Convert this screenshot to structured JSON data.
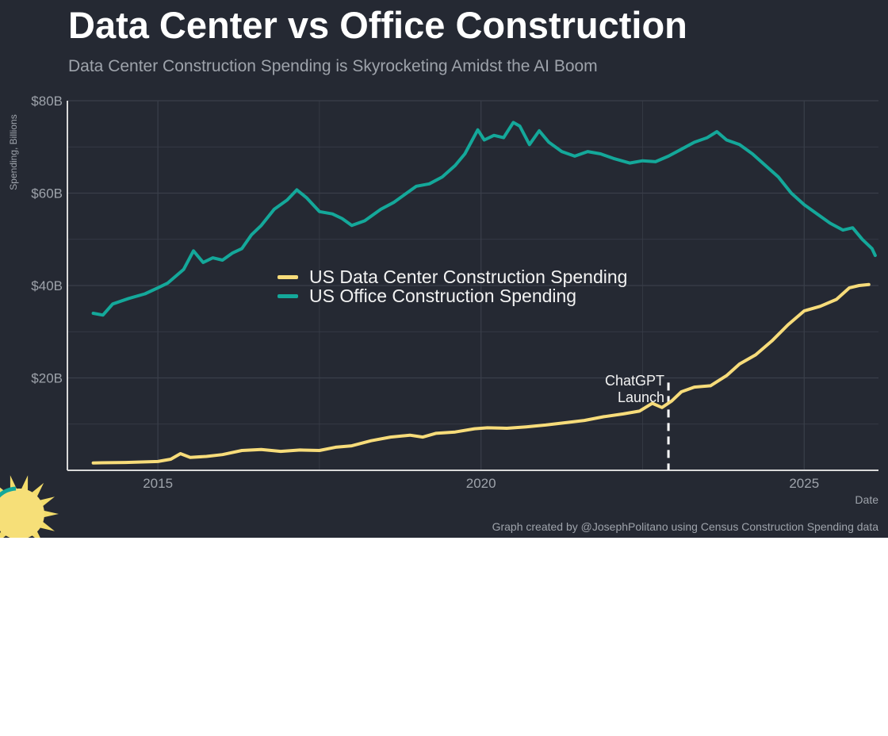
{
  "title": "Data Center vs Office Construction",
  "subtitle": "Data Center Construction Spending is Skyrocketing Amidst the AI Boom",
  "caption": "Graph created by @JosephPolitano using Census Construction Spending data",
  "colors": {
    "background": "#252933",
    "grid": "#3a3f4a",
    "axis": "#d9d9d9",
    "datacenter": "#f7dc7a",
    "office": "#14a89a",
    "text_muted": "#9ea3ab"
  },
  "chart_data": {
    "type": "line",
    "title": "Data Center vs Office Construction",
    "subtitle": "Data Center Construction Spending is Skyrocketing Amidst the AI Boom",
    "xlabel": "Date",
    "ylabel": "Spending, Billions",
    "xlim": [
      2013.6,
      2026.15
    ],
    "ylim": [
      0,
      80
    ],
    "x_ticks": [
      {
        "value": 2015,
        "label": "2015"
      },
      {
        "value": 2020,
        "label": "2020"
      },
      {
        "value": 2025,
        "label": "2025"
      }
    ],
    "y_ticks": [
      {
        "value": 80,
        "label": "$80B"
      },
      {
        "value": 60,
        "label": "$60B"
      },
      {
        "value": 40,
        "label": "$40B"
      },
      {
        "value": 20,
        "label": "$20B"
      }
    ],
    "grid": true,
    "legend_position": "center",
    "series": [
      {
        "name": "US Data Center Construction Spending",
        "color": "#f7dc7a",
        "points": [
          [
            2014.0,
            1.6
          ],
          [
            2014.5,
            1.7
          ],
          [
            2015.0,
            1.9
          ],
          [
            2015.2,
            2.4
          ],
          [
            2015.35,
            3.6
          ],
          [
            2015.5,
            2.8
          ],
          [
            2015.75,
            3.0
          ],
          [
            2016.0,
            3.4
          ],
          [
            2016.3,
            4.3
          ],
          [
            2016.6,
            4.5
          ],
          [
            2016.9,
            4.1
          ],
          [
            2017.2,
            4.4
          ],
          [
            2017.5,
            4.3
          ],
          [
            2017.75,
            5.0
          ],
          [
            2018.0,
            5.3
          ],
          [
            2018.3,
            6.4
          ],
          [
            2018.6,
            7.2
          ],
          [
            2018.9,
            7.6
          ],
          [
            2019.1,
            7.2
          ],
          [
            2019.3,
            8.0
          ],
          [
            2019.6,
            8.3
          ],
          [
            2019.9,
            9.0
          ],
          [
            2020.1,
            9.2
          ],
          [
            2020.4,
            9.1
          ],
          [
            2020.7,
            9.4
          ],
          [
            2021.0,
            9.8
          ],
          [
            2021.3,
            10.3
          ],
          [
            2021.6,
            10.8
          ],
          [
            2021.9,
            11.6
          ],
          [
            2022.2,
            12.2
          ],
          [
            2022.45,
            12.8
          ],
          [
            2022.65,
            14.5
          ],
          [
            2022.8,
            13.6
          ],
          [
            2022.95,
            15.0
          ],
          [
            2023.1,
            17.0
          ],
          [
            2023.3,
            18.0
          ],
          [
            2023.55,
            18.3
          ],
          [
            2023.8,
            20.5
          ],
          [
            2024.0,
            23.0
          ],
          [
            2024.25,
            25.0
          ],
          [
            2024.5,
            28.0
          ],
          [
            2024.75,
            31.5
          ],
          [
            2025.0,
            34.5
          ],
          [
            2025.25,
            35.5
          ],
          [
            2025.5,
            37.0
          ],
          [
            2025.7,
            39.5
          ],
          [
            2025.85,
            40.0
          ],
          [
            2026.0,
            40.2
          ]
        ]
      },
      {
        "name": "US Office Construction Spending",
        "color": "#14a89a",
        "points": [
          [
            2014.0,
            34.0
          ],
          [
            2014.15,
            33.6
          ],
          [
            2014.3,
            36.0
          ],
          [
            2014.55,
            37.2
          ],
          [
            2014.8,
            38.2
          ],
          [
            2015.0,
            39.5
          ],
          [
            2015.15,
            40.5
          ],
          [
            2015.4,
            43.5
          ],
          [
            2015.55,
            47.5
          ],
          [
            2015.7,
            45.0
          ],
          [
            2015.85,
            46.0
          ],
          [
            2016.0,
            45.5
          ],
          [
            2016.15,
            47.0
          ],
          [
            2016.3,
            48.0
          ],
          [
            2016.45,
            51.0
          ],
          [
            2016.6,
            53.0
          ],
          [
            2016.8,
            56.5
          ],
          [
            2017.0,
            58.5
          ],
          [
            2017.15,
            60.7
          ],
          [
            2017.3,
            59.0
          ],
          [
            2017.5,
            56.0
          ],
          [
            2017.7,
            55.5
          ],
          [
            2017.85,
            54.5
          ],
          [
            2018.0,
            53.0
          ],
          [
            2018.2,
            54.0
          ],
          [
            2018.45,
            56.5
          ],
          [
            2018.65,
            58.0
          ],
          [
            2018.85,
            60.0
          ],
          [
            2019.0,
            61.5
          ],
          [
            2019.2,
            62.0
          ],
          [
            2019.4,
            63.5
          ],
          [
            2019.6,
            66.0
          ],
          [
            2019.75,
            68.5
          ],
          [
            2019.95,
            73.7
          ],
          [
            2020.05,
            71.5
          ],
          [
            2020.2,
            72.5
          ],
          [
            2020.35,
            72.0
          ],
          [
            2020.5,
            75.3
          ],
          [
            2020.6,
            74.5
          ],
          [
            2020.75,
            70.5
          ],
          [
            2020.9,
            73.5
          ],
          [
            2021.05,
            71.0
          ],
          [
            2021.25,
            69.0
          ],
          [
            2021.45,
            68.0
          ],
          [
            2021.65,
            69.0
          ],
          [
            2021.85,
            68.5
          ],
          [
            2022.05,
            67.5
          ],
          [
            2022.3,
            66.5
          ],
          [
            2022.5,
            67.0
          ],
          [
            2022.7,
            66.8
          ],
          [
            2022.9,
            68.0
          ],
          [
            2023.1,
            69.5
          ],
          [
            2023.3,
            71.0
          ],
          [
            2023.5,
            72.0
          ],
          [
            2023.65,
            73.3
          ],
          [
            2023.8,
            71.5
          ],
          [
            2024.0,
            70.5
          ],
          [
            2024.2,
            68.5
          ],
          [
            2024.4,
            66.0
          ],
          [
            2024.6,
            63.5
          ],
          [
            2024.8,
            60.0
          ],
          [
            2025.0,
            57.5
          ],
          [
            2025.2,
            55.5
          ],
          [
            2025.4,
            53.5
          ],
          [
            2025.6,
            52.0
          ],
          [
            2025.75,
            52.5
          ],
          [
            2025.9,
            50.0
          ],
          [
            2026.05,
            48.0
          ],
          [
            2026.1,
            46.5
          ]
        ]
      }
    ],
    "annotations": [
      {
        "text_line1": "ChatGPT",
        "text_line2": "Launch",
        "x": 2022.9,
        "y_from": 0,
        "y_to": 19
      }
    ]
  }
}
